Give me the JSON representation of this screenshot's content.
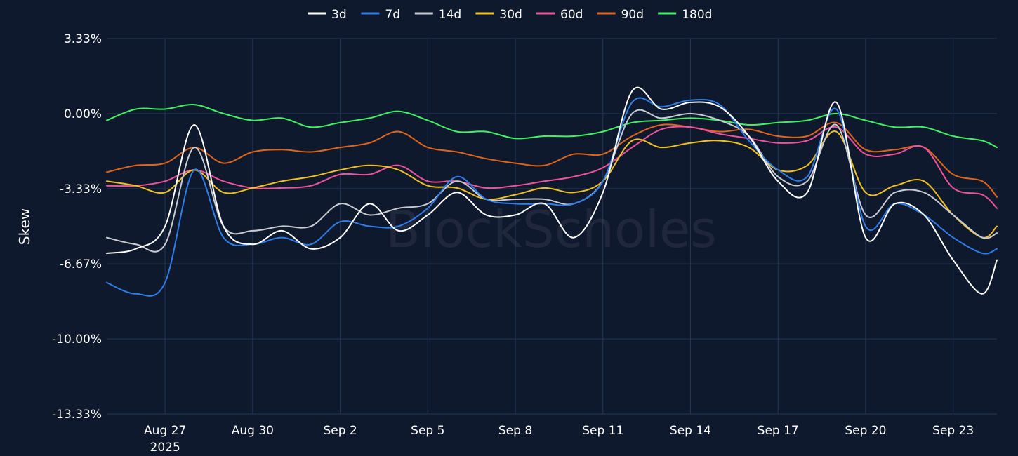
{
  "chart_data": {
    "type": "line",
    "title": "",
    "xlabel": "",
    "ylabel": "Skew",
    "watermark": "BlockScholes",
    "ylim": [
      -13.33,
      3.33
    ],
    "y_ticks": [
      {
        "value": 3.33,
        "label": "3.33%"
      },
      {
        "value": 0,
        "label": "0.00%"
      },
      {
        "value": -3.33,
        "label": "-3.33%"
      },
      {
        "value": -6.67,
        "label": "-6.67%"
      },
      {
        "value": -10,
        "label": "-10.00%"
      },
      {
        "value": -13.33,
        "label": "-13.33%"
      }
    ],
    "xlim": [
      "2025-08-25",
      "2025-09-24T12:00"
    ],
    "x_ticks": [
      {
        "value": "2025-08-27",
        "label": "Aug 27",
        "sublabel": "2025"
      },
      {
        "value": "2025-08-30",
        "label": "Aug 30",
        "sublabel": ""
      },
      {
        "value": "2025-09-02",
        "label": "Sep 2",
        "sublabel": ""
      },
      {
        "value": "2025-09-05",
        "label": "Sep 5",
        "sublabel": ""
      },
      {
        "value": "2025-09-08",
        "label": "Sep 8",
        "sublabel": ""
      },
      {
        "value": "2025-09-11",
        "label": "Sep 11",
        "sublabel": ""
      },
      {
        "value": "2025-09-14",
        "label": "Sep 14",
        "sublabel": ""
      },
      {
        "value": "2025-09-17",
        "label": "Sep 17",
        "sublabel": ""
      },
      {
        "value": "2025-09-20",
        "label": "Sep 20",
        "sublabel": ""
      },
      {
        "value": "2025-09-23",
        "label": "Sep 23",
        "sublabel": ""
      }
    ],
    "grid": true,
    "legend_position": "top-center",
    "x": [
      "2025-08-25",
      "2025-08-26",
      "2025-08-27",
      "2025-08-28",
      "2025-08-29",
      "2025-08-30",
      "2025-08-31",
      "2025-09-01",
      "2025-09-02",
      "2025-09-03",
      "2025-09-04",
      "2025-09-05",
      "2025-09-06",
      "2025-09-07",
      "2025-09-08",
      "2025-09-09",
      "2025-09-10",
      "2025-09-11",
      "2025-09-12",
      "2025-09-13",
      "2025-09-14",
      "2025-09-15",
      "2025-09-16",
      "2025-09-17",
      "2025-09-18",
      "2025-09-19",
      "2025-09-20",
      "2025-09-21",
      "2025-09-22",
      "2025-09-23",
      "2025-09-24",
      "2025-09-24T12:00"
    ],
    "series": [
      {
        "name": "3d",
        "color": "#ffffff",
        "values": [
          -6.2,
          -6.0,
          -5.0,
          -0.5,
          -5.0,
          -5.8,
          -5.2,
          -6.0,
          -5.5,
          -4.0,
          -5.2,
          -4.5,
          -3.5,
          -4.5,
          -4.5,
          -4.0,
          -5.5,
          -3.5,
          1.0,
          0.2,
          0.5,
          0.3,
          -1.0,
          -3.0,
          -3.5,
          0.5,
          -5.5,
          -4.0,
          -4.5,
          -6.5,
          -8.0,
          -6.5
        ]
      },
      {
        "name": "7d",
        "color": "#2f7de8",
        "values": [
          -7.5,
          -8.0,
          -7.5,
          -2.5,
          -5.5,
          -5.8,
          -5.5,
          -5.8,
          -4.8,
          -5.0,
          -5.0,
          -4.2,
          -2.8,
          -3.8,
          -4.0,
          -4.0,
          -4.0,
          -3.0,
          0.5,
          0.3,
          0.6,
          0.4,
          -1.2,
          -2.5,
          -2.8,
          0.2,
          -5.0,
          -4.0,
          -4.5,
          -5.5,
          -6.2,
          -6.0
        ]
      },
      {
        "name": "14d",
        "color": "#c8ccd2",
        "values": [
          -5.5,
          -5.8,
          -5.8,
          -1.5,
          -5.0,
          -5.2,
          -5.0,
          -5.0,
          -4.0,
          -4.5,
          -4.2,
          -4.0,
          -3.0,
          -3.8,
          -3.8,
          -3.8,
          -4.0,
          -3.0,
          0.0,
          -0.2,
          0.0,
          -0.3,
          -1.0,
          -2.8,
          -3.0,
          -0.5,
          -4.5,
          -3.5,
          -3.5,
          -4.5,
          -5.5,
          -5.3
        ]
      },
      {
        "name": "30d",
        "color": "#f2c11c",
        "values": [
          -3.0,
          -3.2,
          -3.5,
          -2.5,
          -3.5,
          -3.3,
          -3.0,
          -2.8,
          -2.5,
          -2.3,
          -2.5,
          -3.2,
          -3.3,
          -3.8,
          -3.6,
          -3.3,
          -3.5,
          -3.0,
          -1.2,
          -1.5,
          -1.3,
          -1.2,
          -1.5,
          -2.5,
          -2.3,
          -0.8,
          -3.5,
          -3.2,
          -3.0,
          -4.5,
          -5.5,
          -5.0
        ]
      },
      {
        "name": "60d",
        "color": "#f0529c",
        "values": [
          -3.2,
          -3.2,
          -3.0,
          -2.5,
          -3.0,
          -3.3,
          -3.3,
          -3.2,
          -2.7,
          -2.7,
          -2.3,
          -3.0,
          -3.0,
          -3.3,
          -3.2,
          -3.0,
          -2.8,
          -2.4,
          -1.5,
          -0.7,
          -0.6,
          -0.9,
          -1.1,
          -1.3,
          -1.2,
          -0.6,
          -1.8,
          -1.8,
          -1.5,
          -3.3,
          -3.6,
          -4.2
        ]
      },
      {
        "name": "90d",
        "color": "#e0651a",
        "values": [
          -2.6,
          -2.3,
          -2.2,
          -1.5,
          -2.2,
          -1.7,
          -1.6,
          -1.7,
          -1.5,
          -1.3,
          -0.8,
          -1.5,
          -1.7,
          -2.0,
          -2.2,
          -2.3,
          -1.8,
          -1.8,
          -1.0,
          -0.5,
          -0.6,
          -0.8,
          -0.7,
          -1.0,
          -1.0,
          -0.4,
          -1.6,
          -1.6,
          -1.5,
          -2.7,
          -3.0,
          -3.7
        ]
      },
      {
        "name": "180d",
        "color": "#3ff262",
        "values": [
          -0.3,
          0.2,
          0.2,
          0.4,
          0.0,
          -0.3,
          -0.2,
          -0.6,
          -0.4,
          -0.2,
          0.1,
          -0.3,
          -0.8,
          -0.8,
          -1.1,
          -1.0,
          -1.0,
          -0.8,
          -0.4,
          -0.3,
          -0.2,
          -0.3,
          -0.5,
          -0.4,
          -0.3,
          0.0,
          -0.3,
          -0.6,
          -0.6,
          -1.0,
          -1.2,
          -1.5
        ]
      }
    ]
  }
}
